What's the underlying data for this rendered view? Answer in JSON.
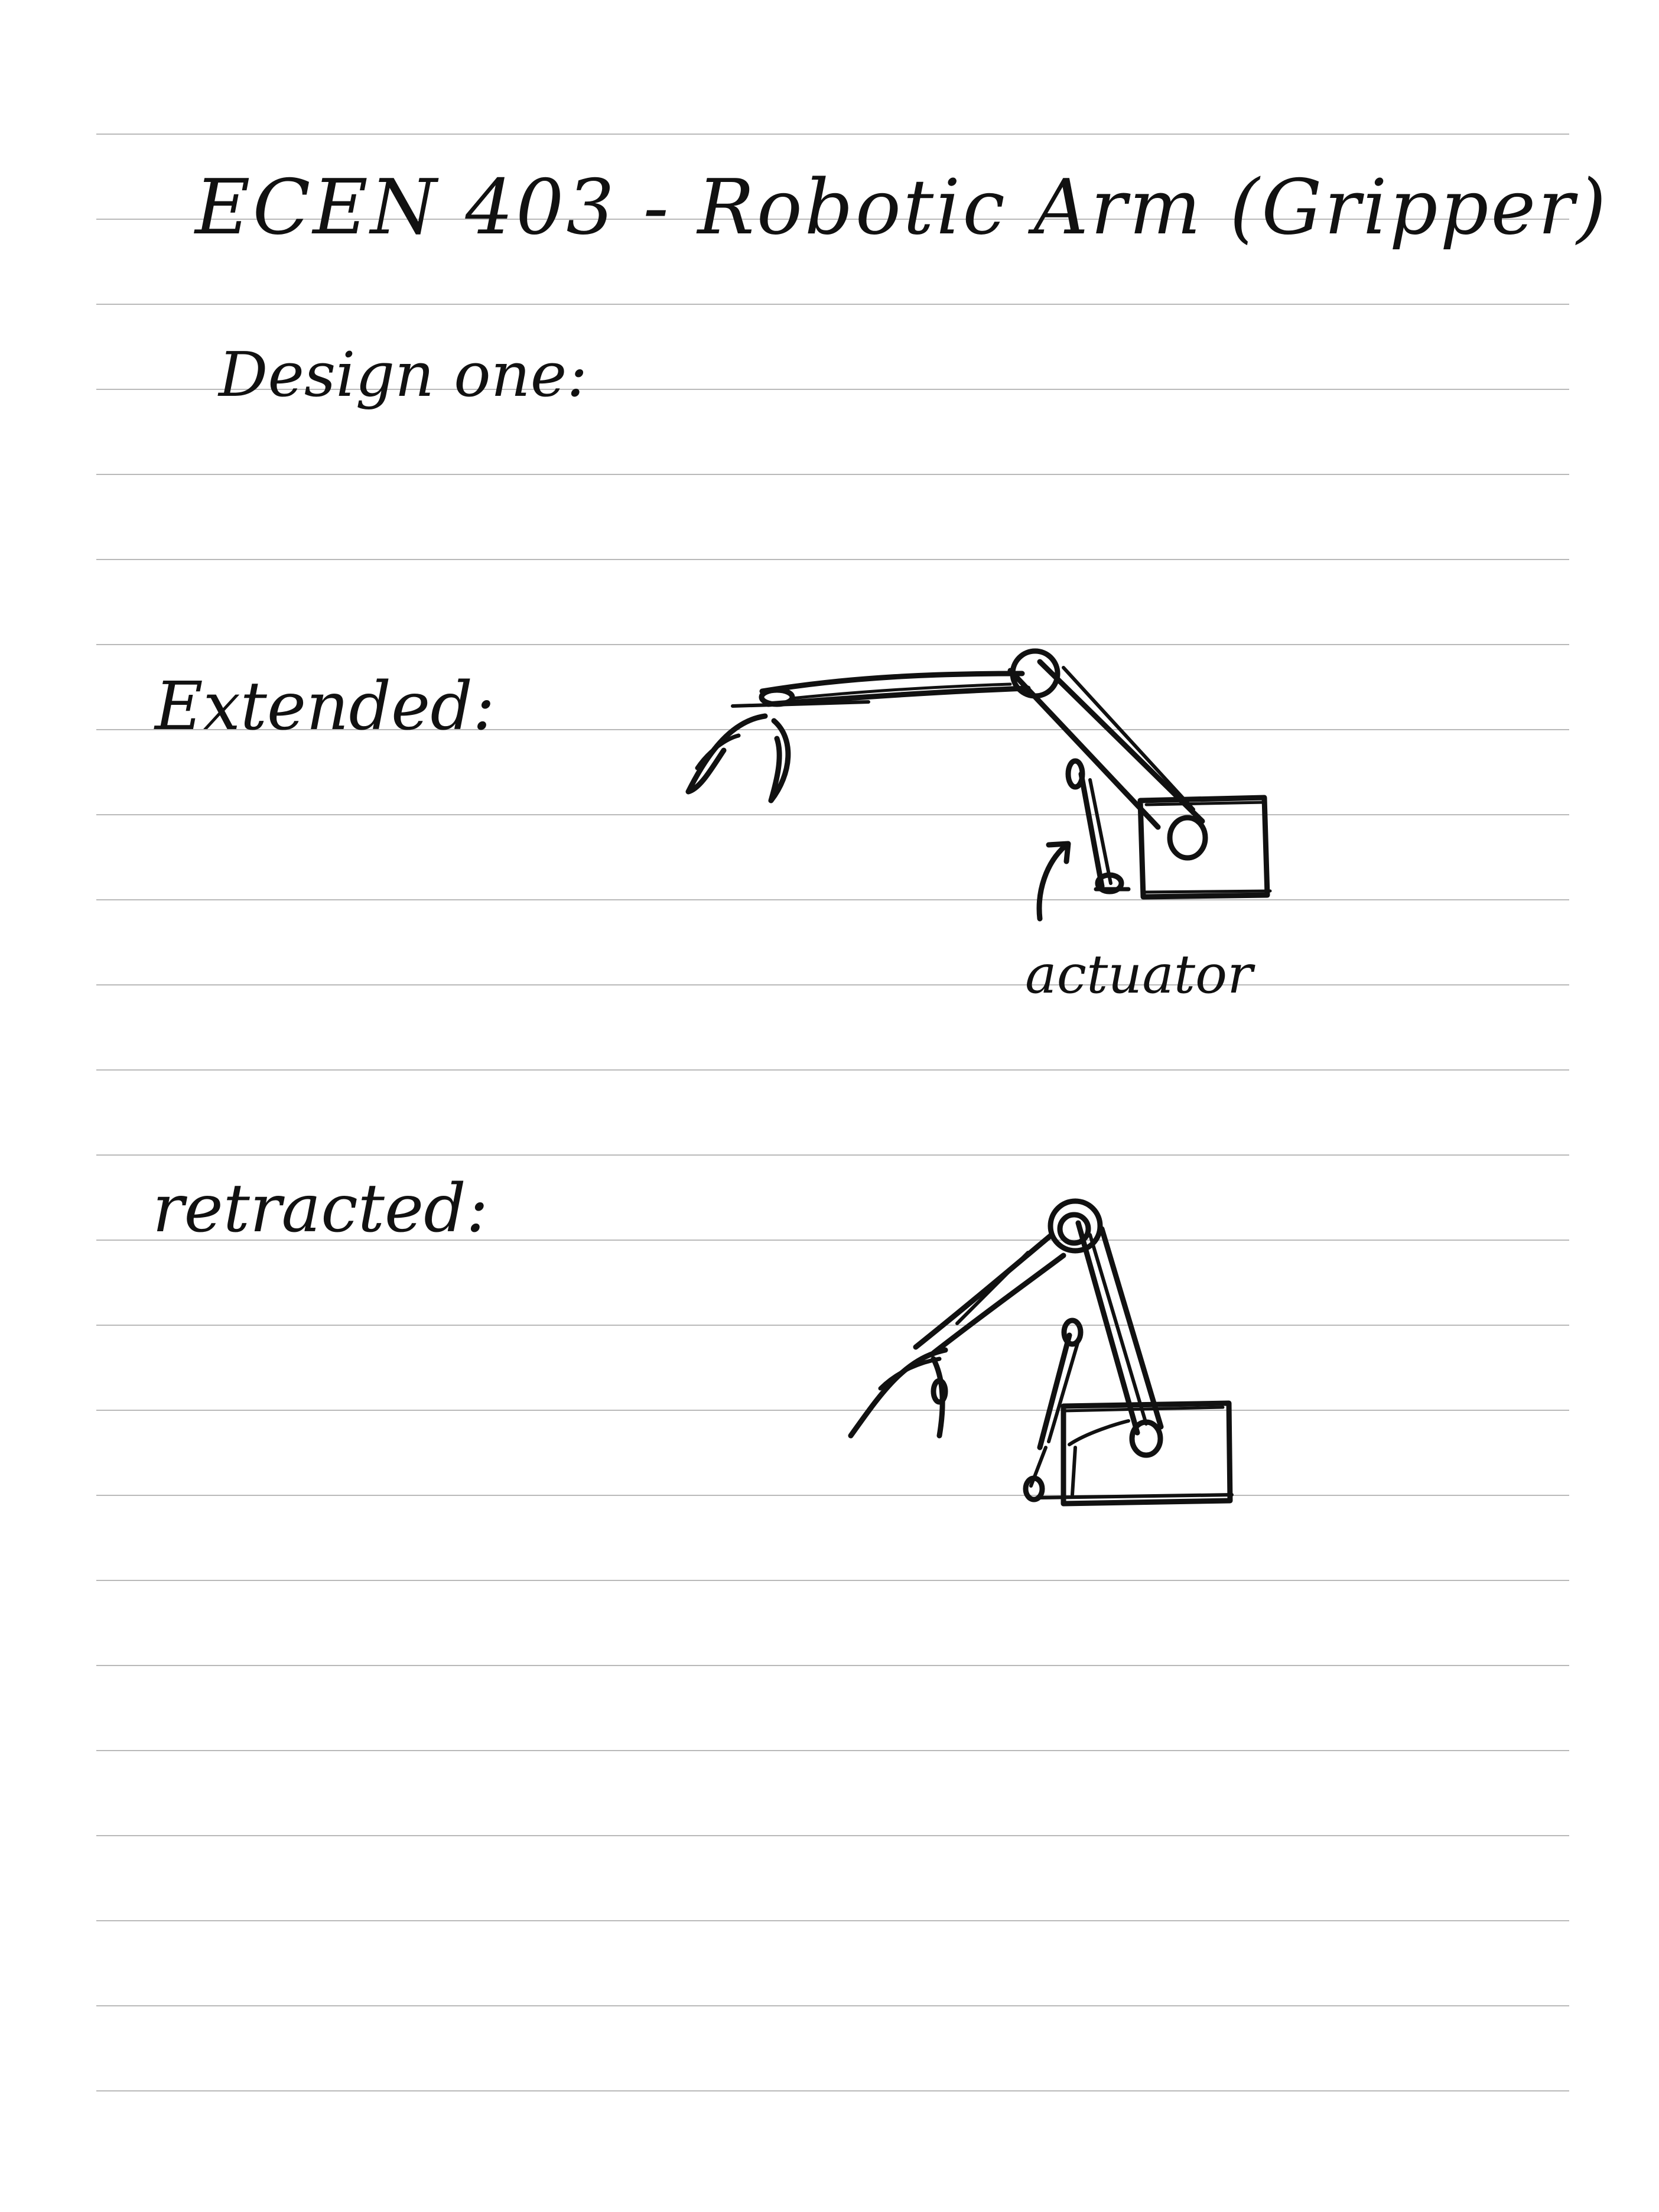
{
  "title": "ECEN 403 - Robotic Arm (Gripper)",
  "design_heading": "Design one:",
  "extended": {
    "label": "Extended:",
    "actuator_label": "actuator"
  },
  "retracted": {
    "label": "retracted:"
  },
  "colors": {
    "ink": "#111111",
    "rule_line": "#b9b9b9",
    "paper": "#ffffff"
  }
}
